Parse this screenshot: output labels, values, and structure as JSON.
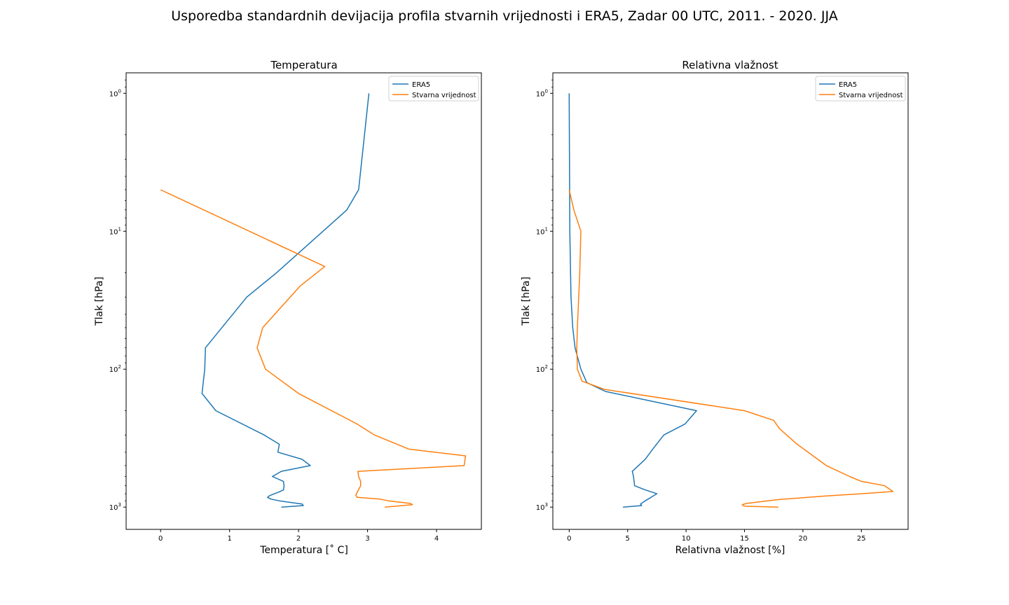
{
  "figure": {
    "title": "Usporedba standardnih devijacija profila stvarnih vrijednosti i ERA5, Zadar 00 UTC, 2011. - 2020. JJA"
  },
  "colors": {
    "era5": "#1f77b4",
    "stvarna": "#ff7f0e"
  },
  "chart_data": [
    {
      "type": "line",
      "title": "Temperatura",
      "xlabel": "Temperatura [$^\\circ$ C]",
      "xlabel_display": "Temperatura [˚ C]",
      "ylabel": "Tlak [hPa]",
      "xlim": [
        -0.5,
        4.65
      ],
      "ylim": [
        1450,
        0.71
      ],
      "yscale": "log",
      "xticks": [
        0,
        1,
        2,
        3,
        4
      ],
      "yticks": [
        {
          "value": 1,
          "base": "10",
          "exp": "0"
        },
        {
          "value": 10,
          "base": "10",
          "exp": "1"
        },
        {
          "value": 100,
          "base": "10",
          "exp": "2"
        },
        {
          "value": 1000,
          "base": "10",
          "exp": "3"
        }
      ],
      "grid": false,
      "legend": "top-right",
      "series": [
        {
          "name": "ERA5",
          "color": "#1f77b4",
          "points": [
            [
              1.75,
              1000
            ],
            [
              2.07,
              975
            ],
            [
              2.05,
              950
            ],
            [
              1.88,
              925
            ],
            [
              1.72,
              900
            ],
            [
              1.6,
              875
            ],
            [
              1.55,
              850
            ],
            [
              1.58,
              825
            ],
            [
              1.65,
              800
            ],
            [
              1.72,
              775
            ],
            [
              1.78,
              750
            ],
            [
              1.79,
              700
            ],
            [
              1.78,
              650
            ],
            [
              1.62,
              600
            ],
            [
              1.75,
              550
            ],
            [
              2.17,
              500
            ],
            [
              2.05,
              450
            ],
            [
              1.7,
              400
            ],
            [
              1.72,
              350
            ],
            [
              1.5,
              300
            ],
            [
              0.8,
              200
            ],
            [
              0.6,
              150
            ],
            [
              0.64,
              100
            ],
            [
              0.65,
              70
            ],
            [
              1.25,
              30
            ],
            [
              1.68,
              20
            ],
            [
              2.7,
              7
            ],
            [
              2.87,
              5
            ],
            [
              3.02,
              1
            ]
          ]
        },
        {
          "name": "Stvarna vrijednost",
          "color": "#ff7f0e",
          "points": [
            [
              3.25,
              1000
            ],
            [
              3.65,
              960
            ],
            [
              3.62,
              940
            ],
            [
              3.3,
              900
            ],
            [
              3.18,
              875
            ],
            [
              2.85,
              850
            ],
            [
              2.83,
              820
            ],
            [
              2.85,
              780
            ],
            [
              2.9,
              700
            ],
            [
              2.9,
              650
            ],
            [
              2.87,
              600
            ],
            [
              2.86,
              550
            ],
            [
              4.4,
              500
            ],
            [
              4.42,
              425
            ],
            [
              3.6,
              380
            ],
            [
              3.1,
              300
            ],
            [
              2.85,
              250
            ],
            [
              2.0,
              150
            ],
            [
              1.52,
              100
            ],
            [
              1.4,
              70
            ],
            [
              1.48,
              50
            ],
            [
              2.02,
              25
            ],
            [
              2.38,
              18
            ],
            [
              0.0,
              5
            ]
          ]
        }
      ]
    },
    {
      "type": "line",
      "title": "Relativna vlažnost",
      "xlabel": "Relativna vlažnost [%]",
      "ylabel": "Tlak [hPa]",
      "xlim": [
        -1.4,
        29.0
      ],
      "ylim": [
        1450,
        0.71
      ],
      "yscale": "log",
      "xticks": [
        0,
        5,
        10,
        15,
        20,
        25
      ],
      "yticks": [
        {
          "value": 1,
          "base": "10",
          "exp": "0"
        },
        {
          "value": 10,
          "base": "10",
          "exp": "1"
        },
        {
          "value": 100,
          "base": "10",
          "exp": "2"
        },
        {
          "value": 1000,
          "base": "10",
          "exp": "3"
        }
      ],
      "grid": false,
      "legend": "top-right",
      "series": [
        {
          "name": "ERA5",
          "color": "#1f77b4",
          "points": [
            [
              4.6,
              1000
            ],
            [
              6.2,
              975
            ],
            [
              6.1,
              950
            ],
            [
              6.5,
              900
            ],
            [
              7.0,
              850
            ],
            [
              7.5,
              800
            ],
            [
              6.5,
              750
            ],
            [
              5.6,
              700
            ],
            [
              5.5,
              600
            ],
            [
              5.4,
              550
            ],
            [
              6.5,
              450
            ],
            [
              7.2,
              375
            ],
            [
              8.1,
              300
            ],
            [
              9.9,
              250
            ],
            [
              10.9,
              200
            ],
            [
              3.1,
              145
            ],
            [
              1.5,
              125
            ],
            [
              1.0,
              100
            ],
            [
              0.5,
              70
            ],
            [
              0.3,
              50
            ],
            [
              0.15,
              30
            ],
            [
              0.05,
              10
            ],
            [
              0.0,
              1
            ]
          ]
        },
        {
          "name": "Stvarna vrijednost",
          "color": "#ff7f0e",
          "points": [
            [
              17.9,
              1000
            ],
            [
              15.0,
              985
            ],
            [
              14.8,
              960
            ],
            [
              15.2,
              940
            ],
            [
              18.0,
              880
            ],
            [
              22.0,
              830
            ],
            [
              25.0,
              800
            ],
            [
              27.7,
              770
            ],
            [
              27.0,
              700
            ],
            [
              25.0,
              650
            ],
            [
              24.0,
              600
            ],
            [
              22.0,
              500
            ],
            [
              19.5,
              350
            ],
            [
              18.0,
              270
            ],
            [
              17.5,
              235
            ],
            [
              15.0,
              200
            ],
            [
              3.0,
              140
            ],
            [
              1.1,
              122
            ],
            [
              0.7,
              100
            ],
            [
              0.65,
              70
            ],
            [
              0.7,
              50
            ],
            [
              0.9,
              20
            ],
            [
              1.0,
              10
            ],
            [
              0.4,
              7
            ],
            [
              0.0,
              5
            ]
          ]
        }
      ]
    }
  ]
}
